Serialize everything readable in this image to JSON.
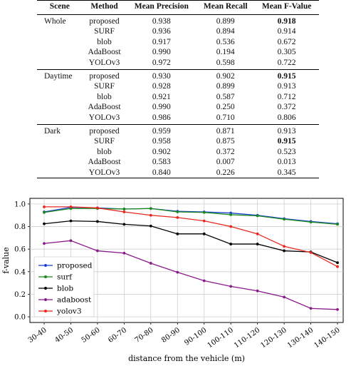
{
  "table": {
    "headers": [
      "Scene",
      "Method",
      "Mean Precision",
      "Mean Recall",
      "Mean F-Value"
    ],
    "groups": [
      {
        "scene": "Whole",
        "rows": [
          [
            "proposed",
            "0.938",
            "0.899",
            "0.918"
          ],
          [
            "SURF",
            "0.936",
            "0.894",
            "0.914"
          ],
          [
            "blob",
            "0.917",
            "0.536",
            "0.672"
          ],
          [
            "AdaBoost",
            "0.990",
            "0.194",
            "0.305"
          ],
          [
            "YOLOv3",
            "0.972",
            "0.598",
            "0.722"
          ]
        ],
        "bold_row": 0
      },
      {
        "scene": "Daytime",
        "rows": [
          [
            "proposed",
            "0.930",
            "0.902",
            "0.915"
          ],
          [
            "SURF",
            "0.928",
            "0.899",
            "0.913"
          ],
          [
            "blob",
            "0.921",
            "0.587",
            "0.712"
          ],
          [
            "AdaBoost",
            "0.990",
            "0.250",
            "0.372"
          ],
          [
            "YOLOv3",
            "0.986",
            "0.710",
            "0.806"
          ]
        ],
        "bold_row": 0
      },
      {
        "scene": "Dark",
        "rows": [
          [
            "proposed",
            "0.959",
            "0.871",
            "0.913"
          ],
          [
            "SURF",
            "0.958",
            "0.875",
            "0.915"
          ],
          [
            "blob",
            "0.902",
            "0.372",
            "0.523"
          ],
          [
            "AdaBoost",
            "0.583",
            "0.007",
            "0.013"
          ],
          [
            "YOLOv3",
            "0.840",
            "0.226",
            "0.345"
          ]
        ],
        "bold_row": 1
      }
    ]
  },
  "chart_data": {
    "type": "line",
    "xlabel": "distance from the vehicle (m)",
    "ylabel": "f-value",
    "ylim": [
      -0.05,
      1.05
    ],
    "yticks": [
      0.0,
      0.2,
      0.4,
      0.6,
      0.8,
      1.0
    ],
    "ytick_labels": [
      "0.0",
      "0.2",
      "0.4",
      "0.6",
      "0.8",
      "1.0"
    ],
    "grid": true,
    "legend_position": "lower-left",
    "categories": [
      "30-40",
      "40-50",
      "50-60",
      "60-70",
      "70-80",
      "80-90",
      "90-100",
      "100-110",
      "110-120",
      "120-130",
      "130-140",
      "140-150"
    ],
    "series": [
      {
        "name": "proposed",
        "color": "#1f3fd9",
        "values": [
          0.93,
          0.97,
          0.965,
          0.955,
          0.96,
          0.935,
          0.93,
          0.92,
          0.9,
          0.87,
          0.845,
          0.825
        ]
      },
      {
        "name": "surf",
        "color": "#1a8a1a",
        "values": [
          0.925,
          0.96,
          0.96,
          0.955,
          0.96,
          0.93,
          0.925,
          0.905,
          0.895,
          0.865,
          0.84,
          0.82
        ]
      },
      {
        "name": "blob",
        "color": "#000000",
        "values": [
          0.825,
          0.85,
          0.845,
          0.82,
          0.805,
          0.735,
          0.735,
          0.645,
          0.645,
          0.585,
          0.575,
          0.48
        ]
      },
      {
        "name": "adaboost",
        "color": "#8b1a8b",
        "values": [
          0.65,
          0.675,
          0.585,
          0.565,
          0.475,
          0.395,
          0.32,
          0.27,
          0.23,
          0.175,
          0.075,
          0.065
        ]
      },
      {
        "name": "yolov3",
        "color": "#e8281e",
        "values": [
          0.975,
          0.975,
          0.965,
          0.93,
          0.9,
          0.88,
          0.85,
          0.8,
          0.735,
          0.625,
          0.57,
          0.445
        ]
      }
    ]
  }
}
